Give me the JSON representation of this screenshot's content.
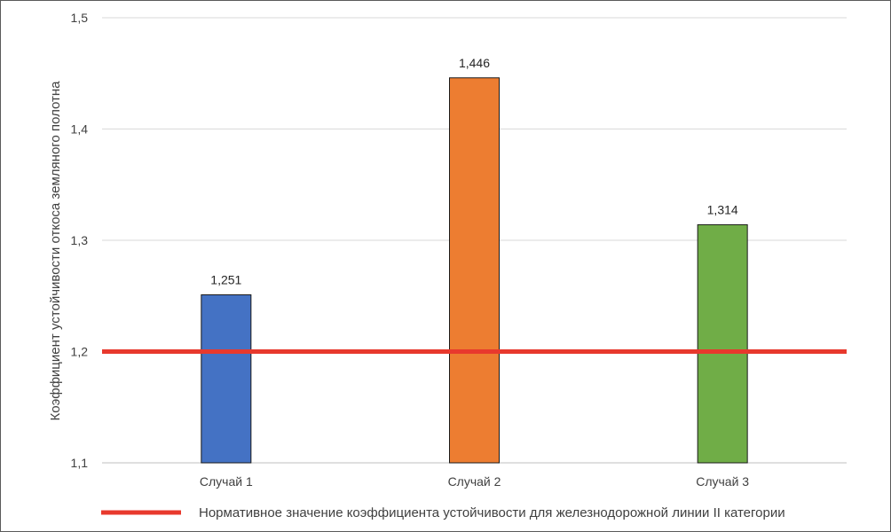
{
  "chart_data": {
    "type": "bar",
    "categories": [
      "Случай 1",
      "Случай 2",
      "Случай 3"
    ],
    "values": [
      1.251,
      1.446,
      1.314
    ],
    "data_labels": [
      "1,251",
      "1,446",
      "1,314"
    ],
    "bar_colors": [
      "#4472c4",
      "#ed7d31",
      "#70ad47"
    ],
    "ylabel": "Коэффициент устойчивости откоса земляного полотна",
    "xlabel": "",
    "ylim": [
      1.1,
      1.5
    ],
    "yticks": [
      1.1,
      1.2,
      1.3,
      1.4,
      1.5
    ],
    "ytick_labels": [
      "1,1",
      "1,2",
      "1,3",
      "1,4",
      "1,5"
    ],
    "grid": true,
    "reference_line": {
      "value": 1.2,
      "color": "#e8392d",
      "label": "Нормативное значение коэффициента устойчивости для железнодорожной линии II категории"
    },
    "legend_position": "bottom"
  }
}
